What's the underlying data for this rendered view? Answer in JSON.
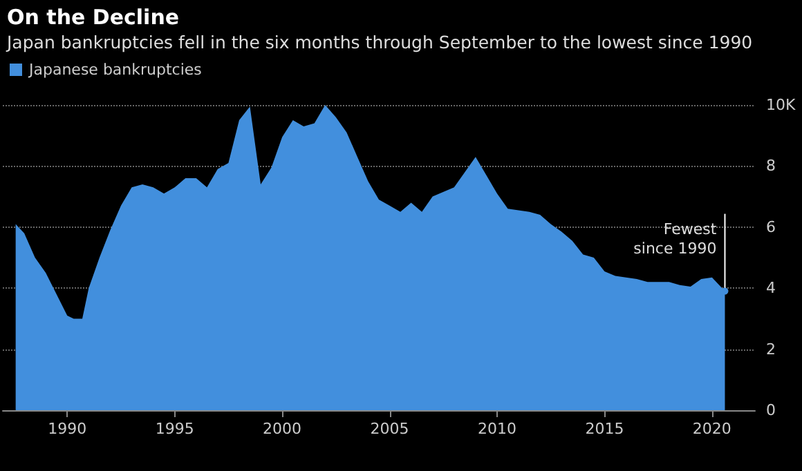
{
  "chart_data": {
    "type": "area",
    "title": "On the Decline",
    "subtitle": "Japan bankruptcies fell in the six months through September to the lowest since 1990",
    "x": [
      1987.6,
      1988,
      1988.5,
      1989,
      1989.5,
      1990,
      1990.3,
      1990.7,
      1991,
      1991.5,
      1992,
      1992.5,
      1993,
      1993.5,
      1994,
      1994.5,
      1995,
      1995.5,
      1996,
      1996.5,
      1997,
      1997.5,
      1998,
      1998.5,
      1999,
      1999.5,
      2000,
      2000.5,
      2001,
      2001.5,
      2002,
      2002.5,
      2003,
      2003.5,
      2004,
      2004.5,
      2005,
      2005.5,
      2006,
      2006.5,
      2007,
      2008,
      2009,
      2010,
      2010.5,
      2011,
      2011.5,
      2012,
      2012.5,
      2013,
      2013.5,
      2014,
      2014.5,
      2015,
      2015.5,
      2016,
      2016.5,
      2017,
      2018,
      2018.5,
      2019,
      2019.5,
      2020,
      2020.6
    ],
    "series": [
      {
        "name": "Japanese bankruptcies",
        "color": "#428fdd",
        "values": [
          6.1,
          5.8,
          5.0,
          4.5,
          3.8,
          3.1,
          3.0,
          3.0,
          4.0,
          5.0,
          5.9,
          6.7,
          7.3,
          7.4,
          7.3,
          7.1,
          7.3,
          7.6,
          7.6,
          7.3,
          7.9,
          8.1,
          9.5,
          9.95,
          7.4,
          7.95,
          8.95,
          9.5,
          9.3,
          9.4,
          10.0,
          9.6,
          9.1,
          8.3,
          7.5,
          6.9,
          6.7,
          6.5,
          6.8,
          6.5,
          7.0,
          7.3,
          8.3,
          7.1,
          6.6,
          6.55,
          6.5,
          6.4,
          6.1,
          5.85,
          5.55,
          5.1,
          5.0,
          4.55,
          4.4,
          4.35,
          4.3,
          4.2,
          4.2,
          4.1,
          4.05,
          4.3,
          4.35,
          3.9
        ]
      }
    ],
    "annotations": [
      {
        "text": "Fewest\nsince 1990",
        "x": 2020.6,
        "y": 3.9
      }
    ],
    "xlim": [
      1987,
      2022
    ],
    "xticks": [
      1990,
      1995,
      2000,
      2005,
      2010,
      2015,
      2020
    ],
    "ylim": [
      0,
      10
    ],
    "yticks": [
      0,
      2,
      4,
      6,
      8,
      {
        "value": 10,
        "label": "10K"
      }
    ],
    "grid": "y",
    "legend": "top left"
  }
}
